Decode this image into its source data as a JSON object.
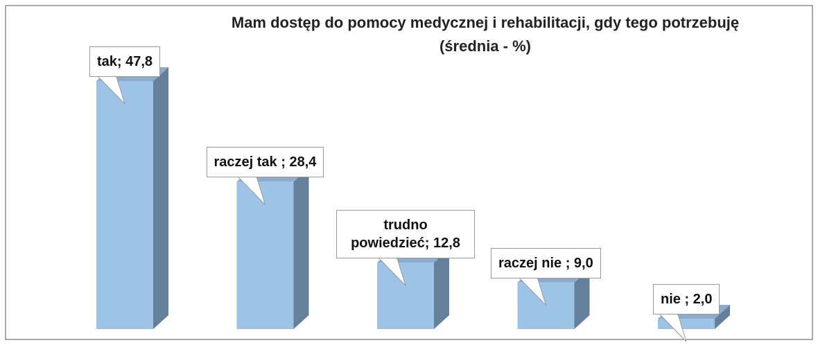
{
  "chart_data": {
    "type": "bar3d",
    "title": "Mam dostęp do pomocy medycznej i rehabilitacji, gdy tego potrzebuję",
    "subtitle": "(średnia - %)",
    "values": [
      47.8,
      28.4,
      12.8,
      9.0,
      2.0
    ],
    "value_labels": [
      "tak; 47,8",
      "raczej tak ; 28,4",
      "trudno powiedzieć; 12,8",
      "raczej nie ; 9,0",
      "nie ; 2,0"
    ],
    "color": "#9dc3e6"
  }
}
